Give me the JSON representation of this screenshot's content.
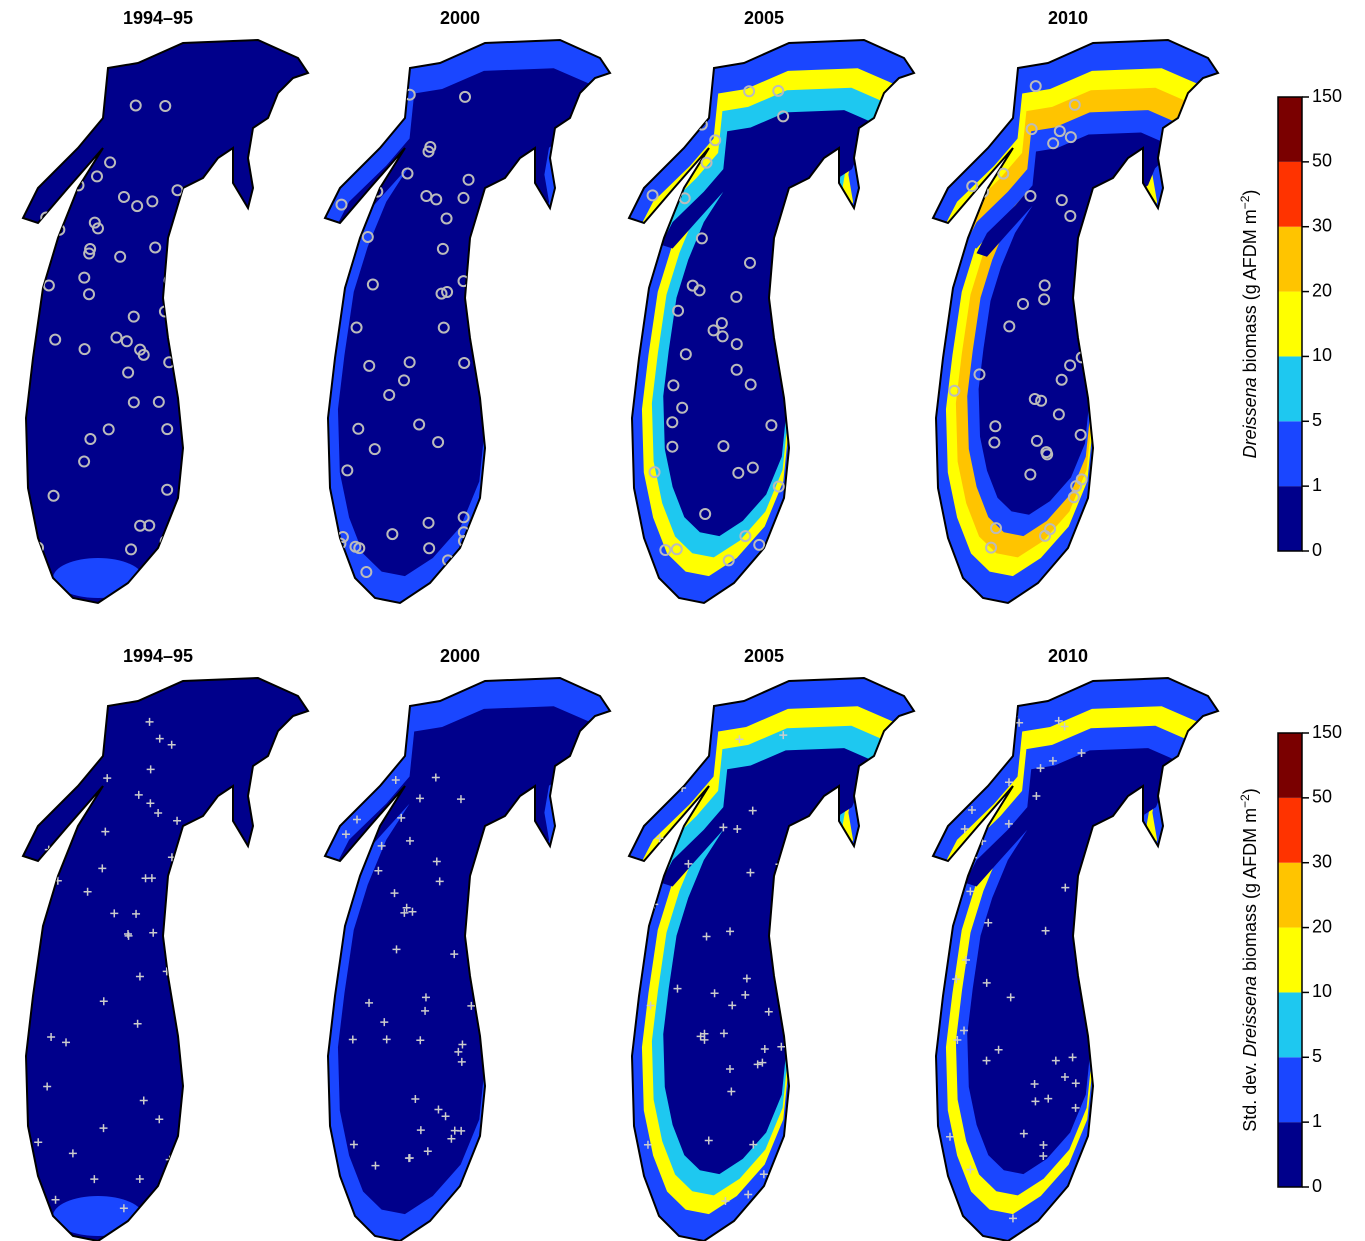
{
  "top_row": {
    "panels": [
      {
        "title": "1994–95"
      },
      {
        "title": "2000"
      },
      {
        "title": "2005"
      },
      {
        "title": "2010"
      }
    ],
    "colorbar": {
      "ticks": [
        0,
        1,
        5,
        10,
        20,
        30,
        50,
        150
      ],
      "colors": [
        "#00008b",
        "#1a46ff",
        "#1ec8f0",
        "#ffff00",
        "#ffc400",
        "#ff3300",
        "#7a0000"
      ],
      "label": {
        "italic": "Dreissena",
        "rest": " biomass (g AFDM m",
        "sup": "−2",
        "close": ")"
      }
    }
  },
  "bottom_row": {
    "panels": [
      {
        "title": "1994–95"
      },
      {
        "title": "2000"
      },
      {
        "title": "2005"
      },
      {
        "title": "2010"
      }
    ],
    "colorbar": {
      "ticks": [
        0,
        1,
        5,
        10,
        20,
        30,
        50,
        150
      ],
      "colors": [
        "#00008b",
        "#1a46ff",
        "#1ec8f0",
        "#ffff00",
        "#ffc400",
        "#ff3300",
        "#7a0000"
      ],
      "label": {
        "prefix": "Std. dev. ",
        "italic": "Dreissena",
        "rest": " biomass (g AFDM m",
        "sup": "−2",
        "close": ")"
      }
    }
  }
}
